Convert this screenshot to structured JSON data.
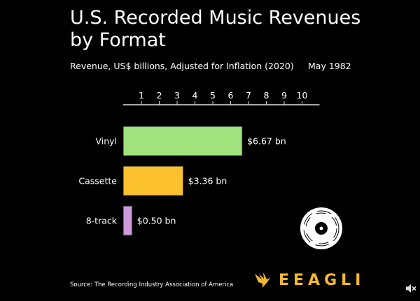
{
  "header": {
    "title": "U.S. Recorded Music Revenues by Format",
    "subtitle": "Revenue, US$ billions, Adjusted for Inflation (2020)",
    "date": "May 1982"
  },
  "footer": {
    "source": "Source: The Recording Industry Association of America",
    "brand": "EEAGLI",
    "mute_icon": "speaker-muted-icon",
    "record_icon": "vinyl-record-icon"
  },
  "chart_data": {
    "type": "bar",
    "orientation": "horizontal",
    "title": "U.S. Recorded Music Revenues by Format",
    "subtitle": "Revenue, US$ billions, Adjusted for Inflation (2020)",
    "period": "May 1982",
    "categories": [
      "Vinyl",
      "Cassette",
      "8-track"
    ],
    "values": [
      6.67,
      3.36,
      0.5
    ],
    "value_labels": [
      "$6.67 bn",
      "$3.36 bn",
      "$0.50 bn"
    ],
    "colors": [
      "#a0e27e",
      "#fbc12e",
      "#cf9ad9"
    ],
    "ticks": [
      1,
      2,
      3,
      4,
      5,
      6,
      7,
      8,
      9,
      10
    ],
    "xlim": [
      0,
      11
    ],
    "axis_position": "top"
  }
}
